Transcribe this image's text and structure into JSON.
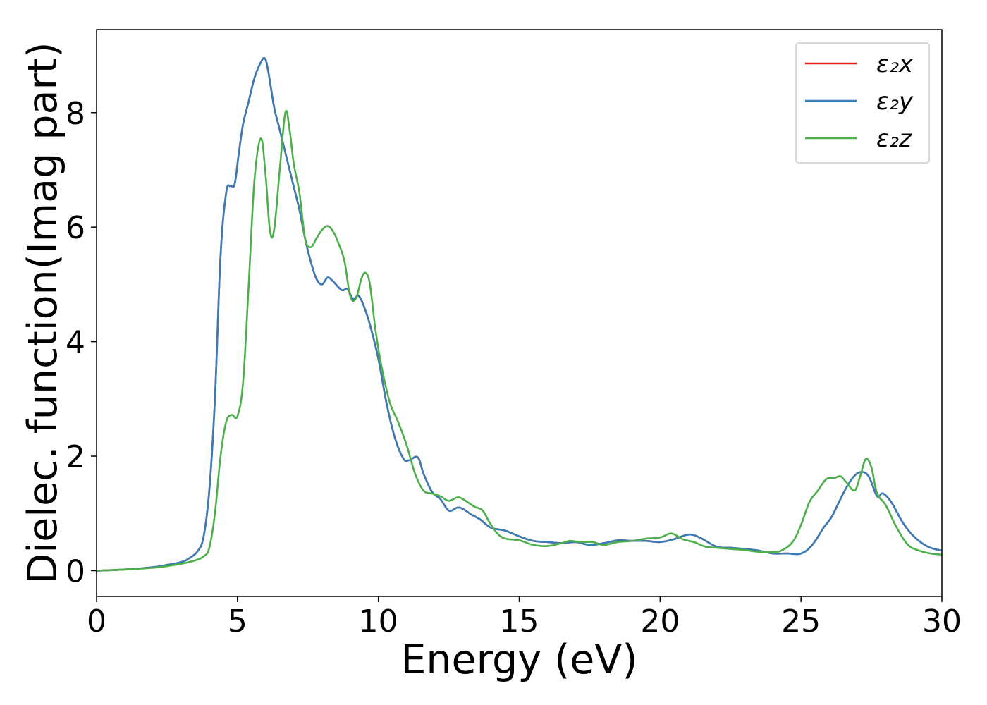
{
  "chart_data": {
    "type": "line",
    "xlabel": "Energy (eV)",
    "ylabel": "Dielec. function(Imag part)",
    "xlim": [
      0,
      30
    ],
    "ylim": [
      -0.45,
      9.45
    ],
    "xticks": [
      0,
      5,
      10,
      15,
      20,
      25,
      30
    ],
    "yticks": [
      0,
      2,
      4,
      6,
      8
    ],
    "grid": false,
    "legend_position": "top-right",
    "series": [
      {
        "name": "ε₂x",
        "color": "#e41a1c",
        "x": [
          0,
          1,
          2,
          2.5,
          3,
          3.3,
          3.6,
          3.8,
          4.0,
          4.2,
          4.4,
          4.6,
          4.75,
          4.9,
          5.05,
          5.2,
          5.4,
          5.6,
          5.8,
          5.97,
          6.1,
          6.3,
          6.5,
          6.8,
          7.0,
          7.2,
          7.4,
          7.6,
          7.8,
          8.0,
          8.2,
          8.4,
          8.7,
          8.9,
          9.1,
          9.3,
          9.5,
          9.7,
          10.0,
          10.3,
          10.6,
          10.9,
          11.1,
          11.4,
          11.6,
          11.9,
          12.2,
          12.5,
          12.8,
          13.0,
          13.3,
          13.6,
          14.0,
          14.5,
          15.0,
          15.5,
          16.0,
          16.5,
          17.0,
          17.5,
          18.0,
          18.5,
          19.0,
          19.5,
          20.0,
          20.5,
          21.0,
          21.4,
          22.0,
          22.5,
          23.0,
          23.5,
          24.0,
          24.5,
          25.0,
          25.4,
          25.8,
          26.1,
          26.5,
          26.8,
          27.1,
          27.4,
          27.7,
          27.9,
          28.2,
          28.6,
          29.0,
          29.5,
          30.0
        ],
        "values": [
          0.0,
          0.02,
          0.06,
          0.1,
          0.15,
          0.22,
          0.35,
          0.6,
          1.4,
          3.0,
          5.5,
          6.6,
          6.72,
          6.75,
          7.3,
          7.8,
          8.2,
          8.6,
          8.85,
          8.95,
          8.7,
          8.1,
          7.7,
          7.1,
          6.7,
          6.3,
          5.8,
          5.4,
          5.1,
          5.0,
          5.12,
          5.05,
          4.9,
          4.92,
          4.75,
          4.8,
          4.6,
          4.3,
          3.7,
          2.9,
          2.3,
          1.95,
          1.93,
          1.98,
          1.7,
          1.38,
          1.25,
          1.05,
          1.1,
          1.08,
          0.98,
          0.9,
          0.75,
          0.7,
          0.6,
          0.52,
          0.5,
          0.48,
          0.5,
          0.45,
          0.48,
          0.53,
          0.52,
          0.52,
          0.5,
          0.55,
          0.63,
          0.58,
          0.42,
          0.4,
          0.38,
          0.35,
          0.3,
          0.3,
          0.3,
          0.45,
          0.75,
          0.95,
          1.35,
          1.6,
          1.72,
          1.65,
          1.3,
          1.35,
          1.2,
          0.85,
          0.6,
          0.42,
          0.35
        ]
      },
      {
        "name": "ε₂y",
        "color": "#377eb8",
        "x": [
          0,
          1,
          2,
          2.5,
          3,
          3.3,
          3.6,
          3.8,
          4.0,
          4.2,
          4.4,
          4.6,
          4.75,
          4.9,
          5.05,
          5.2,
          5.4,
          5.6,
          5.8,
          5.97,
          6.1,
          6.3,
          6.5,
          6.8,
          7.0,
          7.2,
          7.4,
          7.6,
          7.8,
          8.0,
          8.2,
          8.4,
          8.7,
          8.9,
          9.1,
          9.3,
          9.5,
          9.7,
          10.0,
          10.3,
          10.6,
          10.9,
          11.1,
          11.4,
          11.6,
          11.9,
          12.2,
          12.5,
          12.8,
          13.0,
          13.3,
          13.6,
          14.0,
          14.5,
          15.0,
          15.5,
          16.0,
          16.5,
          17.0,
          17.5,
          18.0,
          18.5,
          19.0,
          19.5,
          20.0,
          20.5,
          21.0,
          21.4,
          22.0,
          22.5,
          23.0,
          23.5,
          24.0,
          24.5,
          25.0,
          25.4,
          25.8,
          26.1,
          26.5,
          26.8,
          27.1,
          27.4,
          27.7,
          27.9,
          28.2,
          28.6,
          29.0,
          29.5,
          30.0
        ],
        "values": [
          0.0,
          0.02,
          0.06,
          0.1,
          0.15,
          0.22,
          0.35,
          0.6,
          1.4,
          3.0,
          5.5,
          6.6,
          6.72,
          6.75,
          7.3,
          7.8,
          8.2,
          8.6,
          8.85,
          8.95,
          8.7,
          8.1,
          7.7,
          7.1,
          6.7,
          6.3,
          5.8,
          5.4,
          5.1,
          5.0,
          5.12,
          5.05,
          4.9,
          4.92,
          4.75,
          4.8,
          4.6,
          4.3,
          3.7,
          2.9,
          2.3,
          1.95,
          1.93,
          1.98,
          1.7,
          1.38,
          1.25,
          1.05,
          1.1,
          1.08,
          0.98,
          0.9,
          0.75,
          0.7,
          0.6,
          0.52,
          0.5,
          0.48,
          0.5,
          0.45,
          0.48,
          0.53,
          0.52,
          0.52,
          0.5,
          0.55,
          0.63,
          0.58,
          0.42,
          0.4,
          0.38,
          0.35,
          0.3,
          0.3,
          0.3,
          0.45,
          0.75,
          0.95,
          1.35,
          1.6,
          1.72,
          1.65,
          1.3,
          1.35,
          1.2,
          0.85,
          0.6,
          0.42,
          0.35
        ]
      },
      {
        "name": "ε₂z",
        "color": "#4daf4a",
        "x": [
          0,
          1,
          2,
          2.5,
          3,
          3.5,
          3.8,
          4.0,
          4.2,
          4.4,
          4.6,
          4.8,
          5.0,
          5.2,
          5.4,
          5.6,
          5.83,
          6.0,
          6.15,
          6.3,
          6.5,
          6.7,
          6.85,
          7.0,
          7.2,
          7.4,
          7.6,
          7.8,
          8.0,
          8.2,
          8.4,
          8.6,
          8.8,
          9.0,
          9.2,
          9.4,
          9.55,
          9.7,
          9.9,
          10.1,
          10.4,
          10.7,
          11.0,
          11.3,
          11.6,
          11.9,
          12.2,
          12.5,
          12.8,
          13.0,
          13.4,
          13.7,
          14.0,
          14.4,
          15.0,
          15.5,
          16.0,
          16.5,
          16.8,
          17.2,
          17.6,
          18.0,
          18.5,
          19.0,
          19.5,
          20.0,
          20.4,
          20.8,
          21.2,
          21.6,
          22.0,
          22.5,
          23.0,
          23.5,
          24.0,
          24.3,
          24.7,
          25.0,
          25.3,
          25.6,
          25.9,
          26.2,
          26.4,
          26.6,
          26.9,
          27.1,
          27.3,
          27.5,
          27.7,
          28.0,
          28.4,
          28.8,
          29.2,
          29.6,
          30.0
        ],
        "values": [
          0.0,
          0.02,
          0.05,
          0.08,
          0.12,
          0.18,
          0.25,
          0.4,
          1.0,
          2.0,
          2.6,
          2.72,
          2.7,
          3.3,
          5.0,
          6.8,
          7.55,
          6.9,
          5.95,
          5.95,
          7.0,
          8.0,
          7.7,
          7.1,
          6.6,
          5.8,
          5.65,
          5.8,
          5.95,
          6.02,
          5.92,
          5.7,
          5.4,
          4.8,
          4.75,
          5.1,
          5.2,
          5.0,
          4.2,
          3.6,
          2.95,
          2.6,
          2.2,
          1.7,
          1.4,
          1.35,
          1.3,
          1.22,
          1.28,
          1.25,
          1.12,
          1.05,
          0.8,
          0.58,
          0.53,
          0.45,
          0.43,
          0.48,
          0.52,
          0.5,
          0.5,
          0.45,
          0.5,
          0.52,
          0.56,
          0.58,
          0.65,
          0.55,
          0.5,
          0.42,
          0.4,
          0.38,
          0.36,
          0.33,
          0.33,
          0.35,
          0.5,
          0.8,
          1.2,
          1.4,
          1.6,
          1.62,
          1.65,
          1.55,
          1.4,
          1.65,
          1.95,
          1.8,
          1.35,
          1.15,
          0.75,
          0.45,
          0.35,
          0.3,
          0.28
        ]
      }
    ]
  }
}
